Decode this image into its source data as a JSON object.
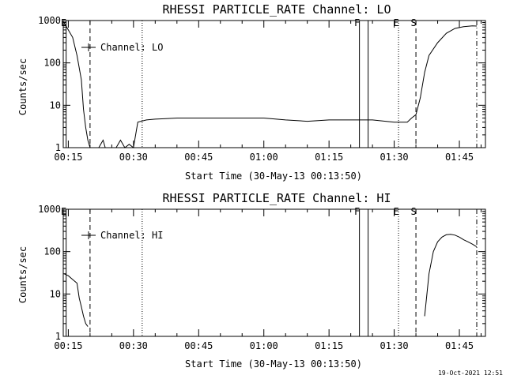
{
  "timestamp": "19-Oct-2021 12:51",
  "chart_data": [
    {
      "type": "line",
      "title": "RHESSI PARTICLE_RATE Channel: LO",
      "xlabel": "Start Time (30-May-13 00:13:50)",
      "ylabel": "Counts/sec",
      "y_scale": "log",
      "ylim": [
        1,
        1000
      ],
      "xlim": [
        "00:13:50",
        "01:51:00"
      ],
      "x_ticks": [
        "00:15",
        "00:30",
        "00:45",
        "01:00",
        "01:15",
        "01:30",
        "01:45"
      ],
      "y_ticks": [
        "1",
        "10",
        "100",
        "1000"
      ],
      "legend": "Channel: LO",
      "legend_position": "upper-left",
      "markers": [
        {
          "t": "00:14:30",
          "label": "E",
          "style": "solid"
        },
        {
          "t": "00:20:00",
          "label": "",
          "style": "dashed"
        },
        {
          "t": "00:32:00",
          "label": "",
          "style": "dotted"
        },
        {
          "t": "01:22:00",
          "label": "F",
          "style": "solid"
        },
        {
          "t": "01:24:00",
          "label": "",
          "style": "solid"
        },
        {
          "t": "01:31:00",
          "label": "E",
          "style": "dotted"
        },
        {
          "t": "01:35:00",
          "label": "S",
          "style": "dashed"
        },
        {
          "t": "01:49:00",
          "label": "",
          "style": "dashdot"
        }
      ],
      "series": [
        {
          "name": "Channel: LO",
          "x": [
            "00:14:00",
            "00:15:00",
            "00:16:00",
            "00:17:00",
            "00:18:00",
            "00:18:30",
            "00:19:00",
            "00:19:30",
            "00:20:00",
            "00:21:00",
            "00:22:00",
            "00:23:00",
            "00:23:30",
            "00:24:00",
            "00:25:00",
            "00:26:00",
            "00:27:00",
            "00:28:00",
            "00:29:00",
            "00:30:00",
            "00:31:00",
            "00:33:00",
            "00:35:00",
            "00:37:00",
            "00:40:00",
            "00:45:00",
            "00:50:00",
            "00:55:00",
            "01:00:00",
            "01:05:00",
            "01:10:00",
            "01:15:00",
            "01:20:00",
            "01:25:00",
            "01:30:00",
            "01:33:00",
            "01:34:00",
            "01:35:00",
            "01:36:00",
            "01:37:00",
            "01:38:00",
            "01:40:00",
            "01:42:00",
            "01:44:00",
            "01:46:00",
            "01:48:00",
            "01:49:00"
          ],
          "y": [
            900,
            600,
            400,
            150,
            40,
            8,
            3,
            1.5,
            1,
            1,
            1,
            1.5,
            1,
            1,
            1,
            1,
            1.5,
            1,
            1.2,
            1,
            4,
            4.5,
            4.7,
            4.8,
            5,
            5,
            5,
            5,
            5,
            4.5,
            4.2,
            4.5,
            4.5,
            4.5,
            4,
            4,
            5,
            6,
            15,
            60,
            150,
            300,
            500,
            650,
            720,
            750,
            740
          ]
        }
      ]
    },
    {
      "type": "line",
      "title": "RHESSI PARTICLE_RATE Channel: HI",
      "xlabel": "Start Time (30-May-13 00:13:50)",
      "ylabel": "Counts/sec",
      "y_scale": "log",
      "ylim": [
        1,
        1000
      ],
      "xlim": [
        "00:13:50",
        "01:51:00"
      ],
      "x_ticks": [
        "00:15",
        "00:30",
        "00:45",
        "01:00",
        "01:15",
        "01:30",
        "01:45"
      ],
      "y_ticks": [
        "1",
        "10",
        "100",
        "1000"
      ],
      "legend": "Channel: HI",
      "legend_position": "upper-left",
      "markers": [
        {
          "t": "00:14:30",
          "label": "E",
          "style": "solid"
        },
        {
          "t": "00:20:00",
          "label": "",
          "style": "dashed"
        },
        {
          "t": "00:32:00",
          "label": "",
          "style": "dotted"
        },
        {
          "t": "01:22:00",
          "label": "F",
          "style": "solid"
        },
        {
          "t": "01:24:00",
          "label": "",
          "style": "solid"
        },
        {
          "t": "01:31:00",
          "label": "E",
          "style": "dotted"
        },
        {
          "t": "01:35:00",
          "label": "S",
          "style": "dashed"
        },
        {
          "t": "01:49:00",
          "label": "",
          "style": "dashdot"
        }
      ],
      "series": [
        {
          "name": "Channel: HI",
          "x": [
            "00:14:00",
            "00:15:00",
            "00:16:00",
            "00:17:00",
            "00:17:30",
            "00:18:00",
            "00:18:30",
            "00:19:00",
            "00:19:30"
          ],
          "y": [
            30,
            27,
            22,
            18,
            8,
            5,
            3,
            2,
            1.7
          ]
        },
        {
          "name": "Channel: HI",
          "x": [
            "01:37:00",
            "01:38:00",
            "01:39:00",
            "01:40:00",
            "01:41:00",
            "01:42:00",
            "01:43:00",
            "01:44:00",
            "01:45:00",
            "01:46:00",
            "01:47:00",
            "01:48:00",
            "01:49:00"
          ],
          "y": [
            3,
            30,
            100,
            170,
            220,
            250,
            255,
            245,
            220,
            190,
            170,
            150,
            130
          ]
        }
      ]
    }
  ]
}
